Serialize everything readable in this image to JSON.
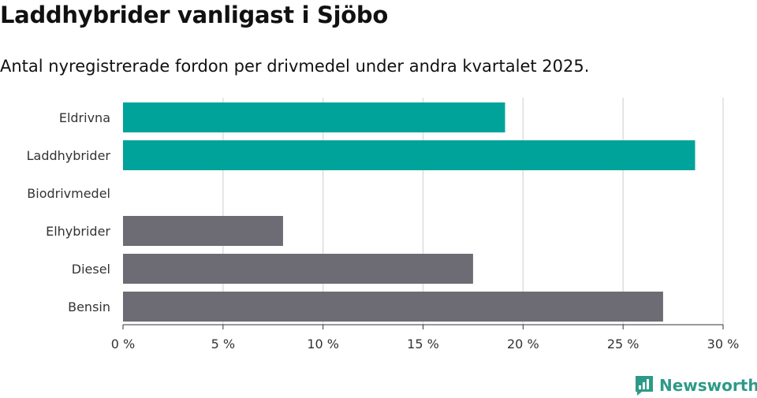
{
  "title": "Laddhybrider vanligast i Sjöbo",
  "subtitle": "Antal nyregistrerade fordon per drivmedel under andra kvartalet 2025.",
  "brand": {
    "name": "Newsworthy",
    "icon": "newsworthy-logo-icon",
    "color": "#2d9a88"
  },
  "colors": {
    "highlight": "#00a39a",
    "default": "#6d6b73",
    "grid": "#dddddd",
    "axis": "#333333"
  },
  "chart_data": {
    "type": "bar",
    "orientation": "horizontal",
    "categories": [
      "Eldrivna",
      "Laddhybrider",
      "Biodrivmedel",
      "Elhybrider",
      "Diesel",
      "Bensin"
    ],
    "values": [
      19.1,
      28.6,
      0,
      8.0,
      17.5,
      27.0
    ],
    "highlighted": [
      true,
      true,
      false,
      false,
      false,
      false
    ],
    "xlim": [
      0,
      30
    ],
    "xticks": [
      0,
      5,
      10,
      15,
      20,
      25,
      30
    ],
    "xtick_labels": [
      "0 %",
      "5 %",
      "10 %",
      "15 %",
      "20 %",
      "25 %",
      "30 %"
    ],
    "grid": "vertical",
    "legend": "none"
  }
}
